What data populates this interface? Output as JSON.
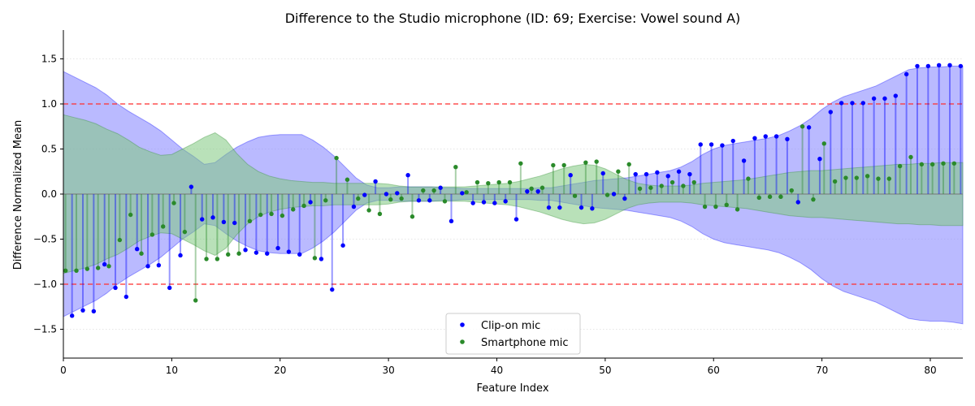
{
  "chart_data": {
    "type": "line",
    "title": "Difference to the Studio microphone (ID: 69; Exercise: Vowel sound A)",
    "xlabel": "Feature Index",
    "ylabel": "Difference Normalized Mean",
    "xlim": [
      0,
      83
    ],
    "ylim": [
      -1.82,
      1.82
    ],
    "x_ticks": [
      0,
      10,
      20,
      30,
      40,
      50,
      60,
      70,
      80
    ],
    "y_ticks": [
      -1.5,
      -1.0,
      -0.5,
      0.0,
      0.5,
      1.0,
      1.5
    ],
    "y_tick_labels": [
      "−1.5",
      "−1.0",
      "−0.5",
      "0.0",
      "0.5",
      "1.0",
      "1.5"
    ],
    "threshold_lines": [
      1.0,
      -1.0
    ],
    "legend_position": "bottom-center",
    "colors": {
      "clip_on": "#0000ff",
      "clip_on_band": "#8c8cff",
      "smartphone": "#2a8a2a",
      "smartphone_band": "#7fc97f",
      "threshold": "#ff3333",
      "grid": "#dddddd"
    },
    "series": [
      {
        "name": "Clip-on mic",
        "x": [
          0.8,
          1.8,
          2.8,
          3.8,
          4.8,
          5.8,
          6.8,
          7.8,
          8.8,
          9.8,
          10.8,
          11.8,
          12.8,
          13.8,
          14.8,
          15.8,
          16.8,
          17.8,
          18.8,
          19.8,
          20.8,
          21.8,
          22.8,
          23.8,
          24.8,
          25.8,
          26.8,
          27.8,
          28.8,
          29.8,
          30.8,
          31.8,
          32.8,
          33.8,
          34.8,
          35.8,
          36.8,
          37.8,
          38.8,
          39.8,
          40.8,
          41.8,
          42.8,
          43.8,
          44.8,
          45.8,
          46.8,
          47.8,
          48.8,
          49.8,
          50.8,
          51.8,
          52.8,
          53.8,
          54.8,
          55.8,
          56.8,
          57.8,
          58.8,
          59.8,
          60.8,
          61.8,
          62.8,
          63.8,
          64.8,
          65.8,
          66.8,
          67.8,
          68.8,
          69.8,
          70.8,
          71.8,
          72.8,
          73.8,
          74.8,
          75.8,
          76.8,
          77.8,
          78.8,
          79.8,
          80.8,
          81.8,
          82.8
        ],
        "values": [
          -1.35,
          -1.29,
          -1.3,
          -0.78,
          -1.04,
          -1.14,
          -0.61,
          -0.8,
          -0.79,
          -1.04,
          -0.68,
          0.08,
          -0.28,
          -0.26,
          -0.31,
          -0.32,
          -0.62,
          -0.65,
          -0.66,
          -0.6,
          -0.64,
          -0.67,
          -0.09,
          -0.72,
          -1.06,
          -0.57,
          -0.14,
          -0.01,
          0.14,
          0.0,
          0.01,
          0.21,
          -0.07,
          -0.07,
          0.07,
          -0.3,
          0.01,
          -0.1,
          -0.09,
          -0.1,
          -0.08,
          -0.28,
          0.03,
          0.03,
          -0.15,
          -0.15,
          0.21,
          -0.15,
          -0.16,
          0.23,
          0.0,
          -0.05,
          0.22,
          0.22,
          0.24,
          0.2,
          0.25,
          0.22,
          0.55,
          0.55,
          0.54,
          0.59,
          0.37,
          0.62,
          0.64,
          0.64,
          0.61,
          -0.09,
          0.74,
          0.39,
          0.91,
          1.01,
          1.01,
          1.01,
          1.06,
          1.06,
          1.09,
          1.33,
          1.42,
          1.42,
          1.43,
          1.43,
          1.42
        ],
        "band_upper": [
          1.36,
          1.3,
          1.24,
          1.18,
          1.1,
          1.0,
          0.92,
          0.85,
          0.78,
          0.7,
          0.6,
          0.5,
          0.42,
          0.33,
          0.35,
          0.44,
          0.52,
          0.58,
          0.63,
          0.65,
          0.66,
          0.66,
          0.66,
          0.6,
          0.52,
          0.42,
          0.3,
          0.18,
          0.1,
          0.07,
          0.07,
          0.08,
          0.08,
          0.08,
          0.08,
          0.07,
          0.07,
          0.06,
          0.06,
          0.06,
          0.06,
          0.06,
          0.06,
          0.06,
          0.07,
          0.07,
          0.09,
          0.11,
          0.13,
          0.15,
          0.16,
          0.17,
          0.18,
          0.2,
          0.22,
          0.24,
          0.26,
          0.3,
          0.36,
          0.44,
          0.5,
          0.54,
          0.56,
          0.58,
          0.6,
          0.62,
          0.65,
          0.7,
          0.76,
          0.84,
          0.94,
          1.02,
          1.08,
          1.12,
          1.16,
          1.2,
          1.26,
          1.32,
          1.38,
          1.4,
          1.41,
          1.41,
          1.42,
          1.42
        ],
        "band_lower": [
          -1.36,
          -1.3,
          -1.24,
          -1.18,
          -1.1,
          -1.0,
          -0.92,
          -0.85,
          -0.78,
          -0.7,
          -0.6,
          -0.5,
          -0.42,
          -0.33,
          -0.35,
          -0.44,
          -0.52,
          -0.58,
          -0.63,
          -0.65,
          -0.66,
          -0.66,
          -0.66,
          -0.6,
          -0.52,
          -0.42,
          -0.3,
          -0.18,
          -0.1,
          -0.07,
          -0.07,
          -0.08,
          -0.08,
          -0.08,
          -0.08,
          -0.07,
          -0.07,
          -0.06,
          -0.06,
          -0.06,
          -0.06,
          -0.06,
          -0.06,
          -0.06,
          -0.07,
          -0.07,
          -0.09,
          -0.11,
          -0.13,
          -0.15,
          -0.16,
          -0.17,
          -0.18,
          -0.2,
          -0.22,
          -0.24,
          -0.26,
          -0.3,
          -0.36,
          -0.44,
          -0.5,
          -0.54,
          -0.56,
          -0.58,
          -0.6,
          -0.62,
          -0.65,
          -0.7,
          -0.76,
          -0.84,
          -0.94,
          -1.02,
          -1.08,
          -1.12,
          -1.16,
          -1.2,
          -1.26,
          -1.32,
          -1.38,
          -1.4,
          -1.41,
          -1.41,
          -1.42,
          -1.44
        ]
      },
      {
        "name": "Smartphone mic",
        "x": [
          0.2,
          1.2,
          2.2,
          3.2,
          4.2,
          5.2,
          6.2,
          7.2,
          8.2,
          9.2,
          10.2,
          11.2,
          12.2,
          13.2,
          14.2,
          15.2,
          16.2,
          17.2,
          18.2,
          19.2,
          20.2,
          21.2,
          22.2,
          23.2,
          24.2,
          25.2,
          26.2,
          27.2,
          28.2,
          29.2,
          30.2,
          31.2,
          32.2,
          33.2,
          34.2,
          35.2,
          36.2,
          37.2,
          38.2,
          39.2,
          40.2,
          41.2,
          42.2,
          43.2,
          44.2,
          45.2,
          46.2,
          47.2,
          48.2,
          49.2,
          50.2,
          51.2,
          52.2,
          53.2,
          54.2,
          55.2,
          56.2,
          57.2,
          58.2,
          59.2,
          60.2,
          61.2,
          62.2,
          63.2,
          64.2,
          65.2,
          66.2,
          67.2,
          68.2,
          69.2,
          70.2,
          71.2,
          72.2,
          73.2,
          74.2,
          75.2,
          76.2,
          77.2,
          78.2,
          79.2,
          80.2,
          81.2,
          82.2
        ],
        "values": [
          -0.85,
          -0.85,
          -0.83,
          -0.82,
          -0.8,
          -0.51,
          -0.23,
          -0.66,
          -0.45,
          -0.36,
          -0.1,
          -0.42,
          -1.18,
          -0.72,
          -0.72,
          -0.67,
          -0.66,
          -0.3,
          -0.23,
          -0.22,
          -0.24,
          -0.17,
          -0.13,
          -0.71,
          -0.07,
          0.4,
          0.16,
          -0.05,
          -0.18,
          -0.22,
          -0.06,
          -0.05,
          -0.25,
          0.04,
          0.04,
          -0.08,
          0.3,
          0.02,
          0.13,
          0.12,
          0.13,
          0.13,
          0.34,
          0.06,
          0.07,
          0.32,
          0.32,
          -0.02,
          0.35,
          0.36,
          -0.01,
          0.25,
          0.33,
          0.06,
          0.07,
          0.09,
          0.13,
          0.09,
          0.13,
          -0.14,
          -0.14,
          -0.12,
          -0.17,
          0.17,
          -0.04,
          -0.03,
          -0.03,
          0.04,
          0.75,
          -0.06,
          0.56,
          0.14,
          0.18,
          0.18,
          0.2,
          0.17,
          0.17,
          0.31,
          0.41,
          0.33,
          0.33,
          0.34,
          0.34
        ],
        "band_upper": [
          0.88,
          0.85,
          0.82,
          0.78,
          0.72,
          0.67,
          0.6,
          0.52,
          0.47,
          0.43,
          0.44,
          0.5,
          0.56,
          0.63,
          0.68,
          0.6,
          0.45,
          0.33,
          0.25,
          0.2,
          0.17,
          0.15,
          0.14,
          0.13,
          0.13,
          0.12,
          0.12,
          0.12,
          0.12,
          0.12,
          0.11,
          0.09,
          0.08,
          0.08,
          0.08,
          0.08,
          0.08,
          0.08,
          0.09,
          0.1,
          0.11,
          0.12,
          0.14,
          0.17,
          0.2,
          0.24,
          0.28,
          0.31,
          0.33,
          0.32,
          0.28,
          0.22,
          0.16,
          0.12,
          0.1,
          0.09,
          0.09,
          0.09,
          0.1,
          0.12,
          0.13,
          0.14,
          0.15,
          0.16,
          0.18,
          0.2,
          0.22,
          0.24,
          0.25,
          0.26,
          0.26,
          0.27,
          0.28,
          0.29,
          0.3,
          0.31,
          0.32,
          0.33,
          0.33,
          0.34,
          0.34,
          0.35,
          0.35,
          0.35
        ],
        "band_lower": [
          -0.88,
          -0.85,
          -0.82,
          -0.78,
          -0.72,
          -0.67,
          -0.6,
          -0.52,
          -0.47,
          -0.43,
          -0.44,
          -0.5,
          -0.56,
          -0.63,
          -0.68,
          -0.6,
          -0.45,
          -0.33,
          -0.25,
          -0.2,
          -0.17,
          -0.15,
          -0.14,
          -0.13,
          -0.13,
          -0.12,
          -0.12,
          -0.12,
          -0.12,
          -0.12,
          -0.11,
          -0.09,
          -0.08,
          -0.08,
          -0.08,
          -0.08,
          -0.08,
          -0.08,
          -0.09,
          -0.1,
          -0.11,
          -0.12,
          -0.14,
          -0.17,
          -0.2,
          -0.24,
          -0.28,
          -0.31,
          -0.33,
          -0.32,
          -0.28,
          -0.22,
          -0.16,
          -0.12,
          -0.1,
          -0.09,
          -0.09,
          -0.09,
          -0.1,
          -0.12,
          -0.13,
          -0.14,
          -0.15,
          -0.16,
          -0.18,
          -0.2,
          -0.22,
          -0.24,
          -0.25,
          -0.26,
          -0.26,
          -0.27,
          -0.28,
          -0.29,
          -0.3,
          -0.31,
          -0.32,
          -0.33,
          -0.33,
          -0.34,
          -0.34,
          -0.35,
          -0.35,
          -0.35
        ]
      }
    ]
  }
}
